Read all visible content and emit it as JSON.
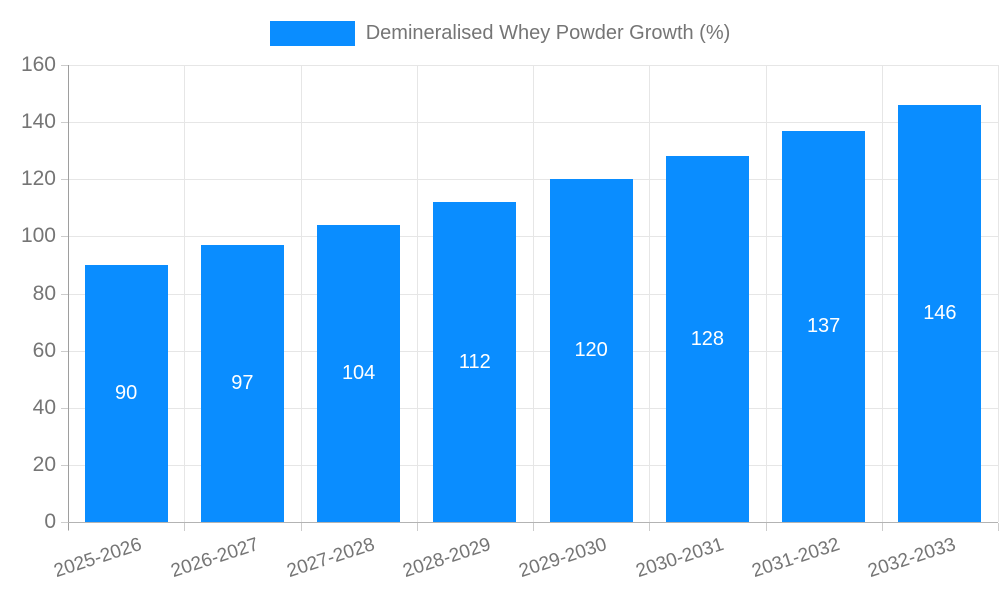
{
  "legend": {
    "label": "Demineralised Whey Powder Growth (%)"
  },
  "chart_data": {
    "type": "bar",
    "title": "Demineralised Whey Powder Growth (%)",
    "categories": [
      "2025-2026",
      "2026-2027",
      "2027-2028",
      "2028-2029",
      "2029-2030",
      "2030-2031",
      "2031-2032",
      "2032-2033"
    ],
    "values": [
      90,
      97,
      104,
      112,
      120,
      128,
      137,
      146
    ],
    "xlabel": "",
    "ylabel": "",
    "ylim": [
      0,
      160
    ],
    "yticks": [
      0,
      20,
      40,
      60,
      80,
      100,
      120,
      140,
      160
    ],
    "grid": true,
    "legend_position": "top",
    "colors": {
      "bar": "#0a8dff",
      "value_label": "#ffffff",
      "axis_text": "#757575",
      "gridline": "#e6e6e6",
      "axis_line": "#9e9e9e",
      "background": "#ffffff"
    }
  }
}
